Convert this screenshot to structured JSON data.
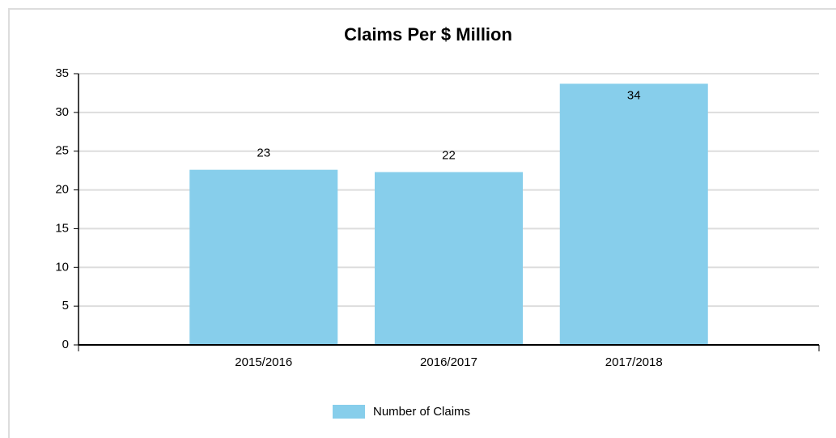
{
  "chart_data": {
    "type": "bar",
    "title": "Claims Per $ Million",
    "categories": [
      "2015/2016",
      "2016/2017",
      "2017/2018"
    ],
    "series": [
      {
        "name": "Number of Claims",
        "color": "#87ceeb",
        "values": [
          22.6,
          22.3,
          33.7
        ],
        "value_labels": [
          "23",
          "22",
          "34"
        ]
      }
    ],
    "ylim": [
      0,
      35
    ],
    "yticks": [
      0,
      5,
      10,
      15,
      20,
      25,
      30,
      35
    ],
    "grid": true
  }
}
